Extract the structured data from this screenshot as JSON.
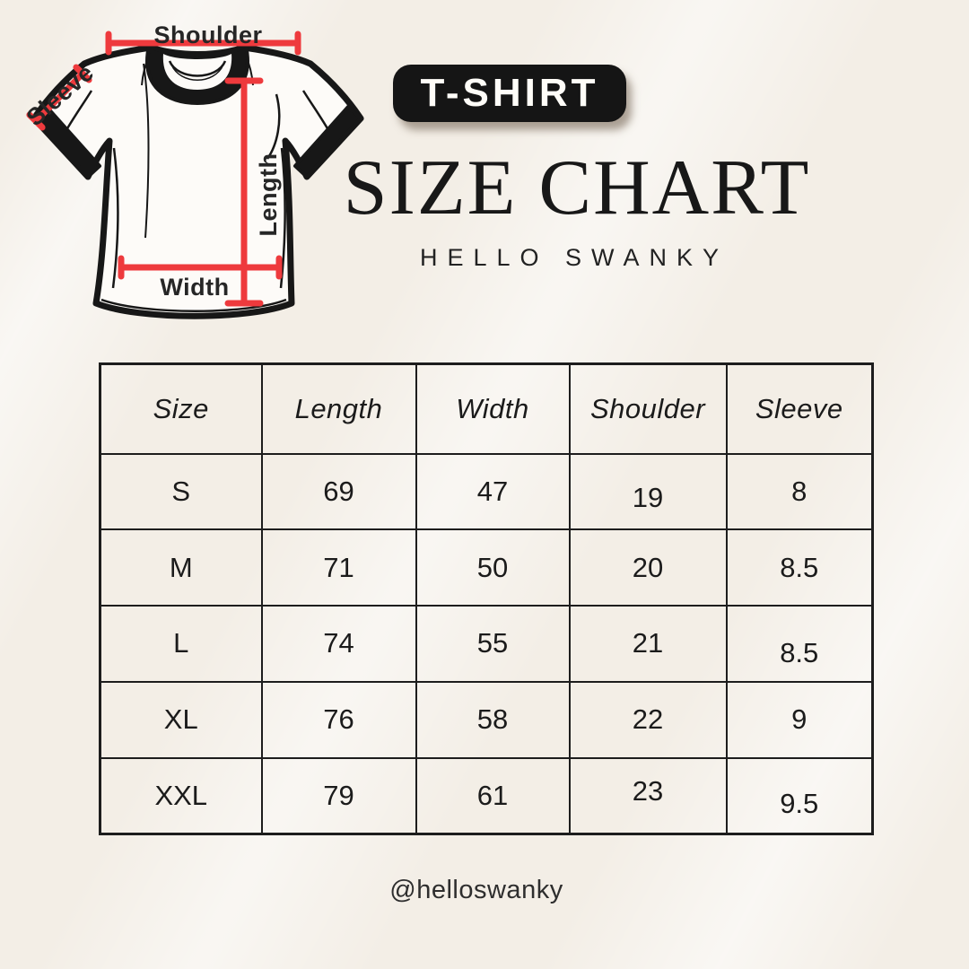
{
  "badge": {
    "label": "T-SHIRT"
  },
  "header": {
    "title": "SIZE CHART",
    "subtitle": "HELLO SWANKY"
  },
  "diagram": {
    "shoulder_label": "Shoulder",
    "sleeve_label": "Sleeve",
    "length_label": "Length",
    "width_label": "Width"
  },
  "footer": {
    "handle": "@helloswanky"
  },
  "colors": {
    "accent_red": "#ee3a3d",
    "ink": "#1d1d1d",
    "background_cream": "#f3eee6",
    "badge_bg": "#151515",
    "badge_text": "#fffdf8"
  },
  "chart_data": {
    "type": "table",
    "title": "SIZE CHART",
    "subtitle": "HELLO SWANKY",
    "columns": [
      "Size",
      "Length",
      "Width",
      "Shoulder",
      "Sleeve"
    ],
    "rows": [
      [
        "S",
        "69",
        "47",
        "19",
        "8"
      ],
      [
        "M",
        "71",
        "50",
        "20",
        "8.5"
      ],
      [
        "L",
        "74",
        "55",
        "21",
        "8.5"
      ],
      [
        "XL",
        "76",
        "58",
        "22",
        "9"
      ],
      [
        "XXL",
        "79",
        "61",
        "23",
        "9.5"
      ]
    ]
  }
}
